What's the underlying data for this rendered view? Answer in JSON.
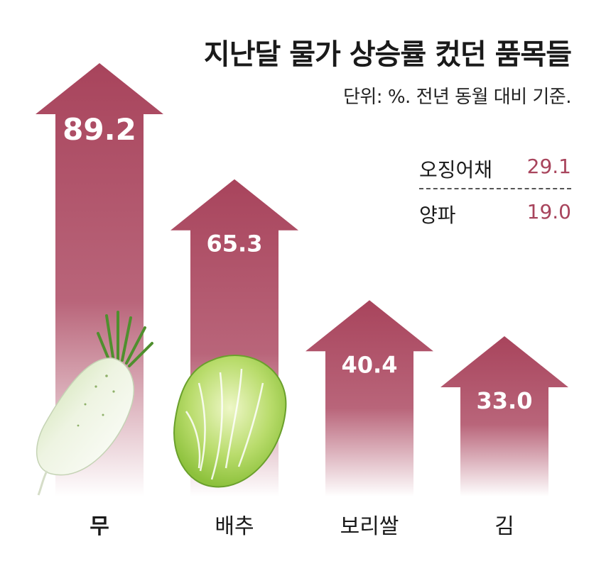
{
  "header": {
    "title": "지난달 물가 상승률 컸던 품목들",
    "subtitle": "단위: %. 전년 동월 대비 기준."
  },
  "chart_data": {
    "type": "bar",
    "title": "지난달 물가 상승률 컸던 품목들",
    "subtitle": "단위: %. 전년 동월 대비 기준.",
    "categories": [
      "무",
      "배추",
      "보리쌀",
      "김"
    ],
    "values": [
      89.2,
      65.3,
      40.4,
      33.0
    ],
    "value_labels": [
      "89.2",
      "65.3",
      "40.4",
      "33.0"
    ],
    "ylim": [
      0,
      100
    ],
    "grid": false,
    "legend": "none",
    "extra_items": [
      {
        "name": "오징어채",
        "value": 29.1,
        "label": "29.1"
      },
      {
        "name": "양파",
        "value": 19.0,
        "label": "19.0"
      }
    ],
    "colors": {
      "arrow": "#a8445c",
      "value_text": "#ffffff",
      "extra_value": "#a8445c"
    }
  },
  "illustrations": [
    "radish-illustration",
    "napa-cabbage-illustration"
  ]
}
